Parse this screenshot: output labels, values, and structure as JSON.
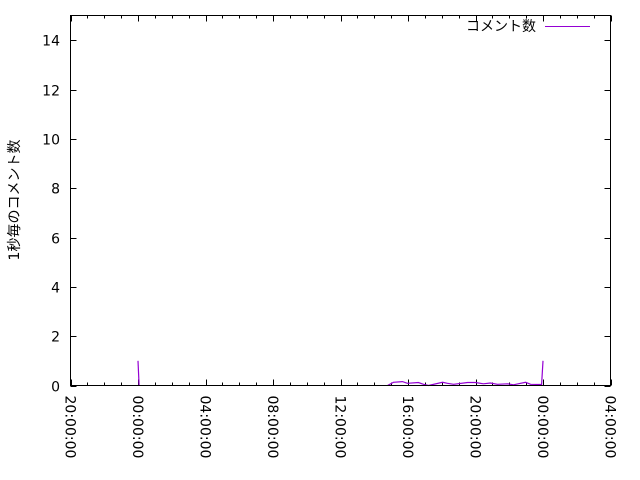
{
  "chart_data": {
    "type": "line",
    "title": "",
    "xlabel": "",
    "ylabel": "1秒毎のコメント数",
    "ylim": [
      0,
      15
    ],
    "yticks": [
      "0",
      "2",
      "4",
      "6",
      "8",
      "10",
      "12",
      "14"
    ],
    "xlim": [
      "20:00:00",
      "04:00:00"
    ],
    "xticks": [
      "20:00:00",
      "00:00:00",
      "04:00:00",
      "08:00:00",
      "12:00:00",
      "16:00:00",
      "20:00:00",
      "00:00:00",
      "04:00:00"
    ],
    "x_minor_tick_interval_hours": 1,
    "grid": false,
    "legend": {
      "position": "top-right"
    },
    "series": [
      {
        "name": "コメント数",
        "color": "#9400d3",
        "segments": [
          [
            [
              "00:00",
              1.0
            ],
            [
              "00:04",
              0
            ]
          ],
          [
            [
              "14:47",
              0
            ],
            [
              "15:08",
              0.13
            ],
            [
              "15:40",
              0.16
            ],
            [
              "15:58",
              0.09
            ],
            [
              "16:37",
              0.12
            ],
            [
              "16:55",
              0.05
            ],
            [
              "17:13",
              0
            ],
            [
              "18:03",
              0.13
            ],
            [
              "18:20",
              0.09
            ],
            [
              "18:42",
              0.05
            ],
            [
              "19:32",
              0.12
            ],
            [
              "20:00",
              0.12
            ],
            [
              "20:28",
              0.07
            ],
            [
              "20:53",
              0.1
            ],
            [
              "21:18",
              0.05
            ],
            [
              "21:54",
              0.07
            ],
            [
              "22:15",
              0.03
            ],
            [
              "22:58",
              0.13
            ],
            [
              "23:16",
              0.05
            ],
            [
              "23:55",
              0.04
            ],
            [
              "00:00",
              1.0
            ]
          ]
        ]
      }
    ]
  }
}
